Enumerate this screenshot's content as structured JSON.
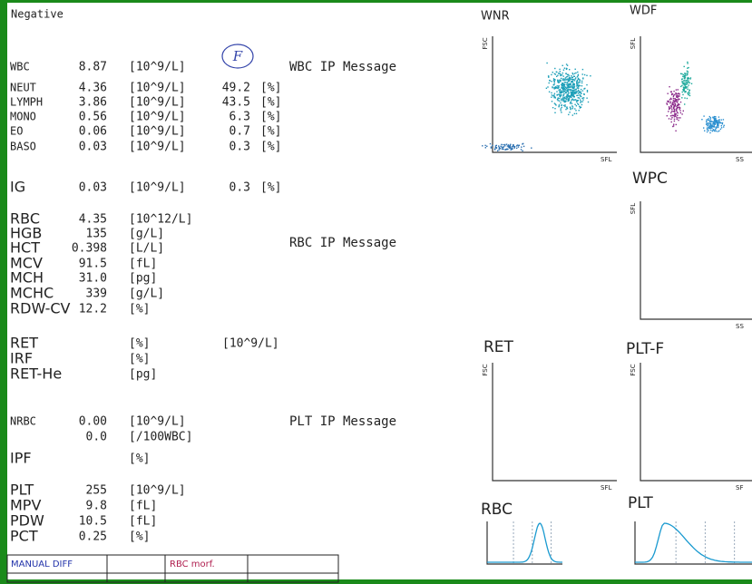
{
  "header": {
    "status": "Negative"
  },
  "handwritten_mark": "F",
  "results": [
    {
      "label": "WBC",
      "value": "8.87",
      "unit": "[10^9/L]"
    },
    {
      "label": "NEUT",
      "value": "4.36",
      "unit": "[10^9/L]",
      "percent": "49.2",
      "percent_unit": "[%]"
    },
    {
      "label": "LYMPH",
      "value": "3.86",
      "unit": "[10^9/L]",
      "percent": "43.5",
      "percent_unit": "[%]"
    },
    {
      "label": "MONO",
      "value": "0.56",
      "unit": "[10^9/L]",
      "percent": "6.3",
      "percent_unit": "[%]"
    },
    {
      "label": "EO",
      "value": "0.06",
      "unit": "[10^9/L]",
      "percent": "0.7",
      "percent_unit": "[%]"
    },
    {
      "label": "BASO",
      "value": "0.03",
      "unit": "[10^9/L]",
      "percent": "0.3",
      "percent_unit": "[%]"
    },
    {
      "label": "IG",
      "value": "0.03",
      "unit": "[10^9/L]",
      "percent": "0.3",
      "percent_unit": "[%]"
    },
    {
      "label": "RBC",
      "value": "4.35",
      "unit": "[10^12/L]"
    },
    {
      "label": "HGB",
      "value": "135",
      "unit": "[g/L]"
    },
    {
      "label": "HCT",
      "value": "0.398",
      "unit": "[L/L]"
    },
    {
      "label": "MCV",
      "value": "91.5",
      "unit": "[fL]"
    },
    {
      "label": "MCH",
      "value": "31.0",
      "unit": "[pg]"
    },
    {
      "label": "MCHC",
      "value": "339",
      "unit": "[g/L]"
    },
    {
      "label": "RDW-CV",
      "value": "12.2",
      "unit": "[%]"
    },
    {
      "label": "RET",
      "unit": "[%]",
      "unit2": "[10^9/L]"
    },
    {
      "label": "IRF",
      "unit": "[%]"
    },
    {
      "label": "RET-He",
      "unit": "[pg]"
    },
    {
      "label": "NRBC",
      "value": "0.00",
      "unit": "[10^9/L]"
    },
    {
      "value": "0.0",
      "unit": "[/100WBC]"
    },
    {
      "label": "IPF",
      "unit": "[%]"
    },
    {
      "label": "PLT",
      "value": "255",
      "unit": "[10^9/L]"
    },
    {
      "label": "MPV",
      "value": "9.8",
      "unit": "[fL]"
    },
    {
      "label": "PDW",
      "value": "10.5",
      "unit": "[fL]"
    },
    {
      "label": "PCT",
      "value": "0.25",
      "unit": "[%]"
    }
  ],
  "messages": [
    "WBC IP Message",
    "RBC IP Message",
    "PLT IP Message"
  ],
  "plots": [
    {
      "title": "WNR",
      "y_label": "FSC",
      "x_label": "SFL"
    },
    {
      "title": "WDF",
      "y_label": "SFL",
      "x_label": "SS"
    },
    {
      "title": "WPC",
      "y_label": "SFL",
      "x_label": "SS"
    },
    {
      "title": "RET",
      "y_label": "FSC",
      "x_label": "SFL"
    },
    {
      "title": "PLT-F",
      "y_label": "FSC",
      "x_label": "SF"
    },
    {
      "title": "RBC"
    },
    {
      "title": "PLT"
    }
  ],
  "table": {
    "cells": [
      "MANUAL DIFF",
      "RBC morf."
    ]
  }
}
